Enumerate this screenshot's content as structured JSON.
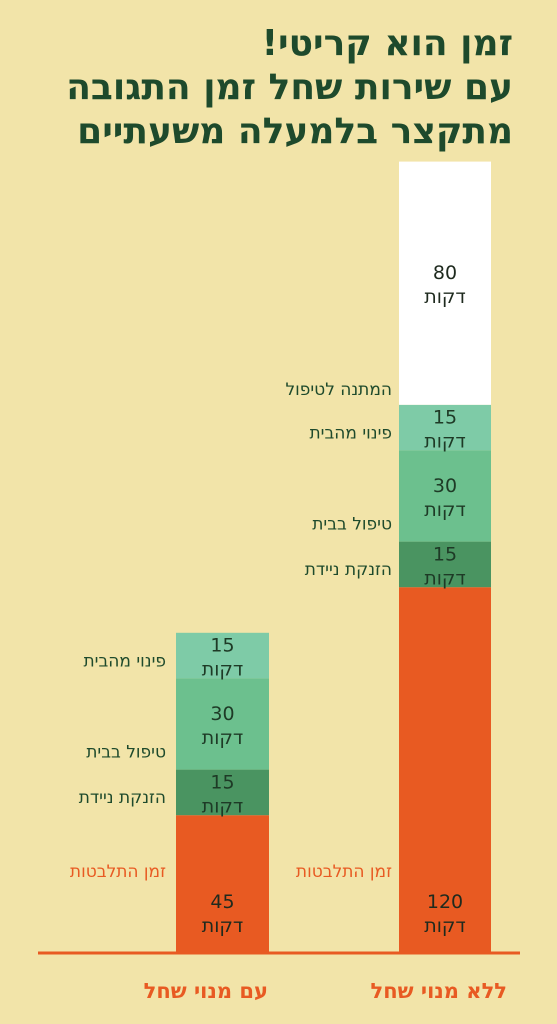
{
  "title_lines": [
    "זמן הוא קריטי!",
    "עם שירות שחל זמן התגובה",
    "מתקצר בלמעלה משעתיים"
  ],
  "colors": {
    "background": "#f2e4a9",
    "title": "#1e4a2c",
    "stages": [
      "#e85a22",
      "#4a9461",
      "#6cc08e",
      "#7ecba7",
      "#ffffff"
    ],
    "label_text": "#1e4a2c",
    "accent": "#e85a22"
  },
  "chart_data": {
    "type": "bar",
    "stacked": true,
    "categories": [
      "ללא מנוי שחל",
      "עם מנוי שחל"
    ],
    "unit": "דקות",
    "series": [
      {
        "name": "זמן התלבטות",
        "values": [
          120,
          45
        ]
      },
      {
        "name": "הזנקת ניידת",
        "values": [
          15,
          15
        ]
      },
      {
        "name": "טיפול בבית",
        "values": [
          30,
          30
        ]
      },
      {
        "name": "פינוי מהבית",
        "values": [
          15,
          15
        ]
      },
      {
        "name": "המתנה לטיפול",
        "values": [
          80,
          0
        ]
      }
    ],
    "grid": false,
    "legend": "none"
  }
}
